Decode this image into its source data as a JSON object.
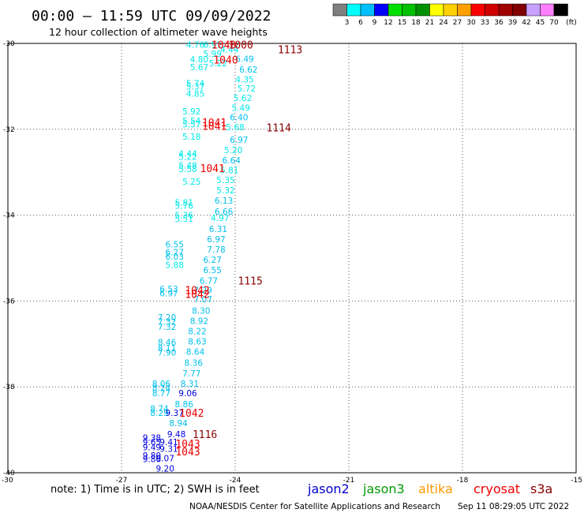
{
  "header": {
    "title": "00:00 – 11:59 UTC 09/09/2022",
    "subtitle": "12 hour collection of altimeter wave heights"
  },
  "color_scale": {
    "values": [
      "3",
      "6",
      "9",
      "12",
      "15",
      "18",
      "21",
      "24",
      "27",
      "30",
      "33",
      "36",
      "39",
      "42",
      "45",
      "70"
    ],
    "unit": "(ft)",
    "colors": [
      "#7f7f7f",
      "#00ffff",
      "#00bfff",
      "#0000ff",
      "#00e000",
      "#00c000",
      "#009000",
      "#ffff00",
      "#ffd000",
      "#ffa000",
      "#ff0000",
      "#d00000",
      "#a00000",
      "#800000",
      "#c8a0ff",
      "#ff80ff",
      "#000000"
    ]
  },
  "footer": {
    "note": "note:  1) Time is in UTC; 2) SWH is in feet",
    "credit": "NOAA/NESDIS Center for Satellite Applications and Research",
    "timestamp": "Sep 11 08:29:05 UTC 2022"
  },
  "legend": [
    {
      "name": "jason2",
      "color": "#0000cc"
    },
    {
      "name": "jason3",
      "color": "#009900"
    },
    {
      "name": "altika",
      "color": "#ff9900"
    },
    {
      "name": "cryosat",
      "color": "#ee0000"
    },
    {
      "name": "s3a",
      "color": "#880000"
    }
  ],
  "chart_data": {
    "type": "scatter",
    "title": "00:00 – 11:59 UTC 09/09/2022",
    "xlim": [
      -30,
      -15
    ],
    "ylim": [
      -40,
      -30
    ],
    "xticks": [
      -30,
      -27,
      -24,
      -21,
      -18,
      -15
    ],
    "yticks": [
      -30,
      -32,
      -34,
      -36,
      -38,
      -40
    ],
    "xtick_labels": [
      "-30",
      "-27",
      "-24",
      "-21",
      "-18",
      "-15"
    ],
    "ytick_labels": [
      "-30",
      "-32",
      "-34",
      "-36",
      "-38",
      "-40"
    ],
    "grid": true,
    "wave_heights": [
      {
        "x": -25.05,
        "y": -30.03,
        "label": "4.76",
        "color": "#00e8e8"
      },
      {
        "x": -24.6,
        "y": -30.03,
        "label": "6.91",
        "color": "#00e8e8"
      },
      {
        "x": -24.15,
        "y": -30.14,
        "label": "4.44",
        "color": "#00e8e8"
      },
      {
        "x": -24.6,
        "y": -30.24,
        "label": "5.99",
        "color": "#00e8e8"
      },
      {
        "x": -24.95,
        "y": -30.37,
        "label": "4.80",
        "color": "#00e8e8"
      },
      {
        "x": -24.45,
        "y": -30.46,
        "label": "5.22",
        "color": "#00e8e8"
      },
      {
        "x": -23.75,
        "y": -30.36,
        "label": "6.49",
        "color": "#00c0ec"
      },
      {
        "x": -24.95,
        "y": -30.55,
        "label": "5.67",
        "color": "#00e8e8"
      },
      {
        "x": -23.65,
        "y": -30.61,
        "label": "6.62",
        "color": "#00c0ec"
      },
      {
        "x": -23.75,
        "y": -30.84,
        "label": "4.35",
        "color": "#00e8e8"
      },
      {
        "x": -25.05,
        "y": -30.93,
        "label": "5.74",
        "color": "#00e8e8"
      },
      {
        "x": -25.05,
        "y": -31.0,
        "label": "5.37",
        "color": "#00e8e8"
      },
      {
        "x": -23.7,
        "y": -31.05,
        "label": "5.72",
        "color": "#00e8e8"
      },
      {
        "x": -25.05,
        "y": -31.17,
        "label": "4.85",
        "color": "#00e8e8"
      },
      {
        "x": -23.8,
        "y": -31.27,
        "label": "5.62",
        "color": "#00e8e8"
      },
      {
        "x": -23.85,
        "y": -31.5,
        "label": "5.49",
        "color": "#00e8e8"
      },
      {
        "x": -25.15,
        "y": -31.58,
        "label": "5.92",
        "color": "#00e8e8"
      },
      {
        "x": -23.9,
        "y": -31.72,
        "label": "6.40",
        "color": "#00c0ec"
      },
      {
        "x": -25.15,
        "y": -31.8,
        "label": "5.54",
        "color": "#00e8e8"
      },
      {
        "x": -25.15,
        "y": -31.88,
        "label": "5.57",
        "color": "#00e8e8"
      },
      {
        "x": -24.0,
        "y": -31.95,
        "label": "5.68",
        "color": "#00e8e8"
      },
      {
        "x": -25.15,
        "y": -32.17,
        "label": "5.18",
        "color": "#00e8e8"
      },
      {
        "x": -23.9,
        "y": -32.24,
        "label": "6.97",
        "color": "#00c0ec"
      },
      {
        "x": -24.05,
        "y": -32.48,
        "label": "5.20",
        "color": "#00e8e8"
      },
      {
        "x": -25.25,
        "y": -32.56,
        "label": "4.44",
        "color": "#00e8e8"
      },
      {
        "x": -25.25,
        "y": -32.64,
        "label": "5.22",
        "color": "#00e8e8"
      },
      {
        "x": -24.1,
        "y": -32.72,
        "label": "6.64",
        "color": "#00c0ec"
      },
      {
        "x": -25.25,
        "y": -32.84,
        "label": "5.48",
        "color": "#00e8e8"
      },
      {
        "x": -25.25,
        "y": -32.92,
        "label": "5.58",
        "color": "#00e8e8"
      },
      {
        "x": -24.15,
        "y": -32.95,
        "label": "5.81",
        "color": "#00e8e8"
      },
      {
        "x": -24.25,
        "y": -33.18,
        "label": "5.35",
        "color": "#00e8e8"
      },
      {
        "x": -25.15,
        "y": -33.22,
        "label": "5.25",
        "color": "#00e8e8"
      },
      {
        "x": -24.25,
        "y": -33.42,
        "label": "5.32",
        "color": "#00e8e8"
      },
      {
        "x": -24.3,
        "y": -33.66,
        "label": "6.13",
        "color": "#00c0ec"
      },
      {
        "x": -25.35,
        "y": -33.7,
        "label": "5.81",
        "color": "#00e8e8"
      },
      {
        "x": -25.35,
        "y": -33.78,
        "label": "5.76",
        "color": "#00e8e8"
      },
      {
        "x": -24.3,
        "y": -33.92,
        "label": "6.66",
        "color": "#00c0ec"
      },
      {
        "x": -25.35,
        "y": -34.0,
        "label": "5.36",
        "color": "#00e8e8"
      },
      {
        "x": -25.35,
        "y": -34.08,
        "label": "5.51",
        "color": "#00e8e8"
      },
      {
        "x": -24.4,
        "y": -34.06,
        "label": "4.97",
        "color": "#00e8e8"
      },
      {
        "x": -24.45,
        "y": -34.32,
        "label": "6.31",
        "color": "#00c0ec"
      },
      {
        "x": -24.5,
        "y": -34.56,
        "label": "6.97",
        "color": "#00c0ec"
      },
      {
        "x": -25.6,
        "y": -34.68,
        "label": "6.55",
        "color": "#00c0ec"
      },
      {
        "x": -24.5,
        "y": -34.8,
        "label": "7.78",
        "color": "#00c0ec"
      },
      {
        "x": -25.6,
        "y": -34.86,
        "label": "6.27",
        "color": "#00c0ec"
      },
      {
        "x": -25.6,
        "y": -34.96,
        "label": "6.03",
        "color": "#00c0ec"
      },
      {
        "x": -24.6,
        "y": -35.04,
        "label": "6.27",
        "color": "#00c0ec"
      },
      {
        "x": -25.6,
        "y": -35.16,
        "label": "5.88",
        "color": "#00e8e8"
      },
      {
        "x": -24.6,
        "y": -35.28,
        "label": "6.55",
        "color": "#00c0ec"
      },
      {
        "x": -24.7,
        "y": -35.52,
        "label": "6.77",
        "color": "#00c0ec"
      },
      {
        "x": -25.75,
        "y": -35.72,
        "label": "6.53",
        "color": "#00c0ec"
      },
      {
        "x": -25.75,
        "y": -35.82,
        "label": "6.97",
        "color": "#00c0ec"
      },
      {
        "x": -24.85,
        "y": -35.74,
        "label": "7.29",
        "color": "#00c0ec"
      },
      {
        "x": -24.85,
        "y": -35.96,
        "label": "7.07",
        "color": "#00c0ec"
      },
      {
        "x": -24.9,
        "y": -36.22,
        "label": "8.30",
        "color": "#00c0ec"
      },
      {
        "x": -25.8,
        "y": -36.38,
        "label": "7.20",
        "color": "#00c0ec"
      },
      {
        "x": -25.8,
        "y": -36.48,
        "label": "7.32",
        "color": "#00c0ec"
      },
      {
        "x": -24.95,
        "y": -36.46,
        "label": "8.92",
        "color": "#00c0ec"
      },
      {
        "x": -25.8,
        "y": -36.6,
        "label": "7.32",
        "color": "#00c0ec"
      },
      {
        "x": -25.0,
        "y": -36.7,
        "label": "8.22",
        "color": "#00c0ec"
      },
      {
        "x": -25.0,
        "y": -36.94,
        "label": "8.63",
        "color": "#00c0ec"
      },
      {
        "x": -25.8,
        "y": -36.96,
        "label": "8.46",
        "color": "#00c0ec"
      },
      {
        "x": -25.8,
        "y": -37.1,
        "label": "8.11",
        "color": "#00c0ec"
      },
      {
        "x": -25.8,
        "y": -37.2,
        "label": "7.90",
        "color": "#00c0ec"
      },
      {
        "x": -25.05,
        "y": -37.18,
        "label": "8.64",
        "color": "#00c0ec"
      },
      {
        "x": -25.1,
        "y": -37.44,
        "label": "8.36",
        "color": "#00c0ec"
      },
      {
        "x": -25.15,
        "y": -37.68,
        "label": "7.77",
        "color": "#00c0ec"
      },
      {
        "x": -25.95,
        "y": -37.92,
        "label": "8.06",
        "color": "#00c0ec"
      },
      {
        "x": -25.2,
        "y": -37.92,
        "label": "8.31",
        "color": "#00c0ec"
      },
      {
        "x": -25.95,
        "y": -38.02,
        "label": "8.24",
        "color": "#00c0ec"
      },
      {
        "x": -25.95,
        "y": -38.14,
        "label": "8.77",
        "color": "#00c0ec"
      },
      {
        "x": -25.25,
        "y": -38.14,
        "label": "9.06",
        "color": "#0000e0"
      },
      {
        "x": -25.35,
        "y": -38.4,
        "label": "8.86",
        "color": "#00c0ec"
      },
      {
        "x": -26.0,
        "y": -38.5,
        "label": "8.74",
        "color": "#00c0ec"
      },
      {
        "x": -26.0,
        "y": -38.6,
        "label": "8.29",
        "color": "#00c0ec"
      },
      {
        "x": -25.6,
        "y": -38.6,
        "label": "9.37",
        "color": "#0000e0"
      },
      {
        "x": -25.5,
        "y": -38.84,
        "label": "8.94",
        "color": "#00c0ec"
      },
      {
        "x": -25.55,
        "y": -39.1,
        "label": "9.48",
        "color": "#0000e0"
      },
      {
        "x": -26.2,
        "y": -39.18,
        "label": "9.38",
        "color": "#0000e0"
      },
      {
        "x": -26.2,
        "y": -39.28,
        "label": "9.65",
        "color": "#0000e0"
      },
      {
        "x": -25.75,
        "y": -39.28,
        "label": "9.41",
        "color": "#0000e0"
      },
      {
        "x": -26.2,
        "y": -39.4,
        "label": "9.49",
        "color": "#0000e0"
      },
      {
        "x": -25.75,
        "y": -39.44,
        "label": "9.31",
        "color": "#0000e0"
      },
      {
        "x": -26.2,
        "y": -39.6,
        "label": "9.80",
        "color": "#0000e0"
      },
      {
        "x": -26.2,
        "y": -39.68,
        "label": "9.86",
        "color": "#0000e0"
      },
      {
        "x": -25.85,
        "y": -39.66,
        "label": "9.07",
        "color": "#0000e0"
      },
      {
        "x": -25.85,
        "y": -39.9,
        "label": "9.20",
        "color": "#0000e0"
      }
    ],
    "pass_labels": [
      {
        "x": -24.3,
        "y": -30.03,
        "label": "1040",
        "color": "#ee0000"
      },
      {
        "x": -23.85,
        "y": -30.03,
        "label": "1000",
        "color": "#aa0000"
      },
      {
        "x": -22.55,
        "y": -30.14,
        "label": "1113",
        "color": "#880000"
      },
      {
        "x": -24.25,
        "y": -30.38,
        "label": "1040",
        "color": "#ee0000"
      },
      {
        "x": -24.55,
        "y": -31.84,
        "label": "1041",
        "color": "#ee0000"
      },
      {
        "x": -24.55,
        "y": -31.92,
        "label": "1041",
        "color": "#ee0000"
      },
      {
        "x": -22.85,
        "y": -31.96,
        "label": "1114",
        "color": "#880000"
      },
      {
        "x": -24.6,
        "y": -32.9,
        "label": "1041",
        "color": "#ee0000"
      },
      {
        "x": -23.6,
        "y": -35.52,
        "label": "1115",
        "color": "#880000"
      },
      {
        "x": -25.0,
        "y": -35.74,
        "label": "1042",
        "color": "#ee0000"
      },
      {
        "x": -25.0,
        "y": -35.84,
        "label": "1042",
        "color": "#ee0000"
      },
      {
        "x": -25.15,
        "y": -38.6,
        "label": "1042",
        "color": "#ee0000"
      },
      {
        "x": -24.8,
        "y": -39.1,
        "label": "1116",
        "color": "#880000"
      },
      {
        "x": -25.25,
        "y": -39.32,
        "label": "1043",
        "color": "#ee0000"
      },
      {
        "x": -25.25,
        "y": -39.5,
        "label": "1043",
        "color": "#ee0000"
      }
    ]
  }
}
